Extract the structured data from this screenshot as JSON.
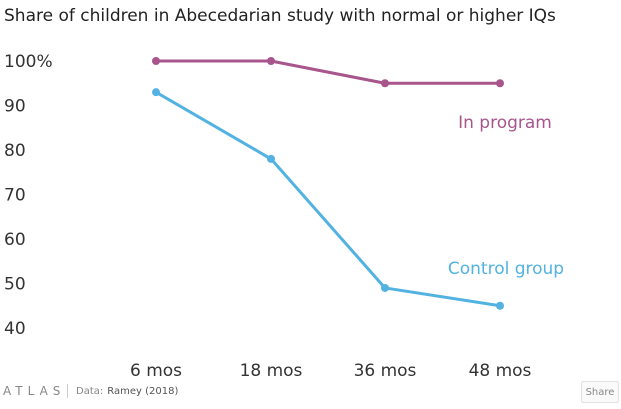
{
  "chart_data": {
    "type": "line",
    "title": "Share of children in Abecedarian study with normal or higher IQs",
    "categories": [
      "6 mos",
      "18 mos",
      "36 mos",
      "48 mos"
    ],
    "y_tick_labels": [
      "100%",
      "90",
      "80",
      "70",
      "60",
      "50",
      "40"
    ],
    "y_ticks": [
      100,
      90,
      80,
      70,
      60,
      50,
      40
    ],
    "ylim": [
      40,
      100
    ],
    "xlabel": "",
    "ylabel": "",
    "grid": false,
    "series": [
      {
        "name": "In program",
        "color": "#a8558c",
        "values": [
          100,
          100,
          95,
          95
        ]
      },
      {
        "name": "Control group",
        "color": "#52b2e1",
        "values": [
          93,
          78,
          49,
          45
        ]
      }
    ]
  },
  "footer": {
    "logo_text": "ATLAS",
    "source_label": "Data:",
    "source_value": "Ramey (2018)",
    "share_label": "Share"
  }
}
